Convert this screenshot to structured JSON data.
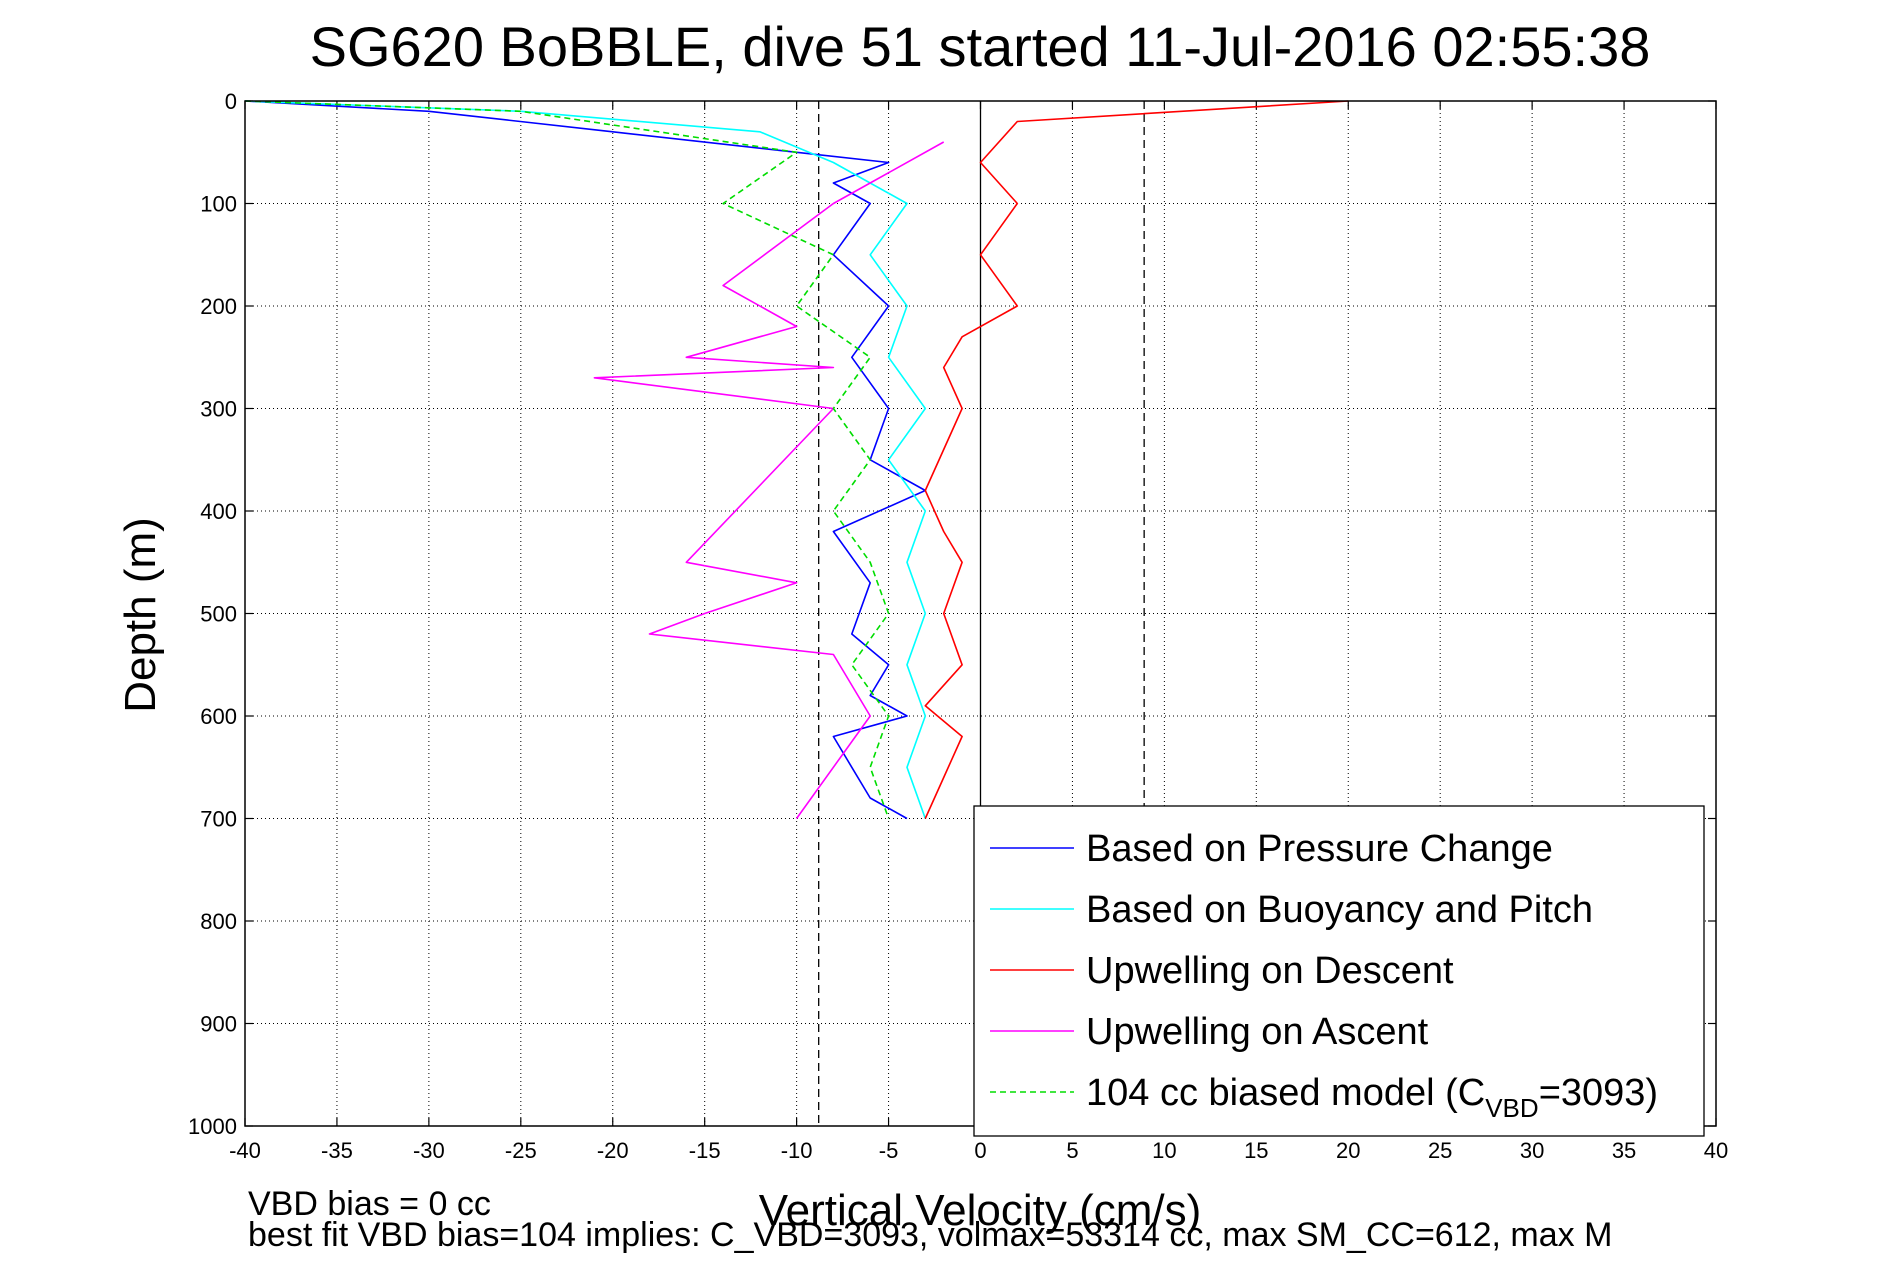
{
  "chart_data": {
    "type": "line",
    "title": "SG620 BoBBLE, dive 51 started 11-Jul-2016 02:55:38",
    "xlabel": "Vertical Velocity (cm/s)",
    "ylabel": "Depth (m)",
    "xlim": [
      -40,
      40
    ],
    "ylim": [
      0,
      1000
    ],
    "y_reversed": true,
    "grid": true,
    "legend_position": "bottom-right",
    "x_ticks": [
      "-40",
      "-35",
      "-30",
      "-25",
      "-20",
      "-15",
      "-10",
      "-5",
      "0",
      "5",
      "10",
      "15",
      "20",
      "25",
      "30",
      "35",
      "40"
    ],
    "y_ticks": [
      "0",
      "100",
      "200",
      "300",
      "400",
      "500",
      "600",
      "700",
      "800",
      "900",
      "1000"
    ],
    "reference_lines": [
      {
        "x": -8.8,
        "style": "dashed"
      },
      {
        "x": 0,
        "style": "solid"
      },
      {
        "x": 8.9,
        "style": "dashed"
      }
    ],
    "series": [
      {
        "name": "Based on Pressure Change",
        "color": "#0000ff",
        "style": "solid",
        "x": [
          -40,
          -30,
          -20,
          -10,
          -5,
          -8,
          -6,
          -8,
          -5,
          -7,
          -5,
          -6,
          -3,
          -8,
          -6,
          -7,
          -5,
          -6,
          -4,
          -8,
          -7,
          -6,
          -4
        ],
        "y": [
          0,
          10,
          30,
          50,
          60,
          80,
          100,
          150,
          200,
          250,
          300,
          350,
          380,
          420,
          470,
          520,
          550,
          580,
          600,
          620,
          650,
          680,
          700
        ]
      },
      {
        "name": "Based on Buoyancy and Pitch",
        "color": "#00ffff",
        "style": "solid",
        "x": [
          -40,
          -25,
          -12,
          -8,
          -4,
          -6,
          -4,
          -5,
          -3,
          -5,
          -3,
          -4,
          -3,
          -4,
          -3,
          -4,
          -3
        ],
        "y": [
          0,
          10,
          30,
          60,
          100,
          150,
          200,
          250,
          300,
          350,
          400,
          450,
          500,
          550,
          600,
          650,
          700
        ]
      },
      {
        "name": "Upwelling on Descent",
        "color": "#ff0000",
        "style": "solid",
        "x": [
          20,
          2,
          0,
          2,
          0,
          2,
          -1,
          -2,
          -1,
          -2,
          -3,
          -2,
          -1,
          -2,
          -1,
          -3,
          -1,
          -2,
          -3
        ],
        "y": [
          0,
          20,
          60,
          100,
          150,
          200,
          230,
          260,
          300,
          340,
          380,
          420,
          450,
          500,
          550,
          590,
          620,
          660,
          700
        ]
      },
      {
        "name": "Upwelling on Ascent",
        "color": "#ff00ff",
        "style": "solid",
        "x": [
          -2,
          -8,
          -14,
          -10,
          -16,
          -8,
          -21,
          -8,
          -16,
          -10,
          -15,
          -18,
          -8,
          -6,
          -10
        ],
        "y": [
          40,
          100,
          180,
          220,
          250,
          260,
          270,
          300,
          450,
          470,
          500,
          520,
          540,
          600,
          700
        ]
      },
      {
        "name": "104 cc biased model (C_VBD=3093)",
        "color": "#00dd00",
        "style": "dashed",
        "x": [
          -40,
          -25,
          -10,
          -14,
          -8,
          -10,
          -6,
          -8,
          -6,
          -8,
          -6,
          -5,
          -7,
          -5,
          -6,
          -5
        ],
        "y": [
          0,
          10,
          50,
          100,
          150,
          200,
          250,
          300,
          350,
          400,
          450,
          500,
          550,
          600,
          650,
          700
        ]
      }
    ],
    "legend": [
      {
        "label_main": "Based on Pressure Change",
        "label_sub": "",
        "label_tail": ""
      },
      {
        "label_main": "Based on Buoyancy and Pitch",
        "label_sub": "",
        "label_tail": ""
      },
      {
        "label_main": "Upwelling on Descent",
        "label_sub": "",
        "label_tail": ""
      },
      {
        "label_main": "Upwelling on Ascent",
        "label_sub": "",
        "label_tail": ""
      },
      {
        "label_main": "104 cc biased model (C",
        "label_sub": "VBD",
        "label_tail": "=3093)"
      }
    ],
    "footer": {
      "line1": "VBD bias = 0 cc",
      "line2": "best fit VBD bias=104 implies: C_VBD=3093, volmax=53314 cc, max SM_CC=612, max M"
    }
  }
}
